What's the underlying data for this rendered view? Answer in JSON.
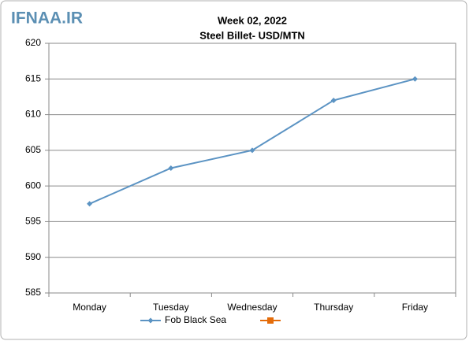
{
  "watermark": "IFNAA.IR",
  "chart_data": {
    "type": "line",
    "title": "Week 02, 2022",
    "subtitle": "Steel Billet- USD/MTN",
    "categories": [
      "Monday",
      "Tuesday",
      "Wednesday",
      "Thursday",
      "Friday"
    ],
    "series": [
      {
        "name": "Fob Black Sea",
        "color": "#5b93c3",
        "values": [
          597.5,
          602.5,
          605,
          612,
          615
        ]
      },
      {
        "name": null,
        "color": "#e46c0a",
        "values": [
          null,
          null,
          null,
          null,
          null
        ]
      }
    ],
    "ylim": [
      585,
      620
    ],
    "yticks": [
      585,
      590,
      595,
      600,
      605,
      610,
      615,
      620
    ],
    "grid": true,
    "legend": "bottom"
  }
}
